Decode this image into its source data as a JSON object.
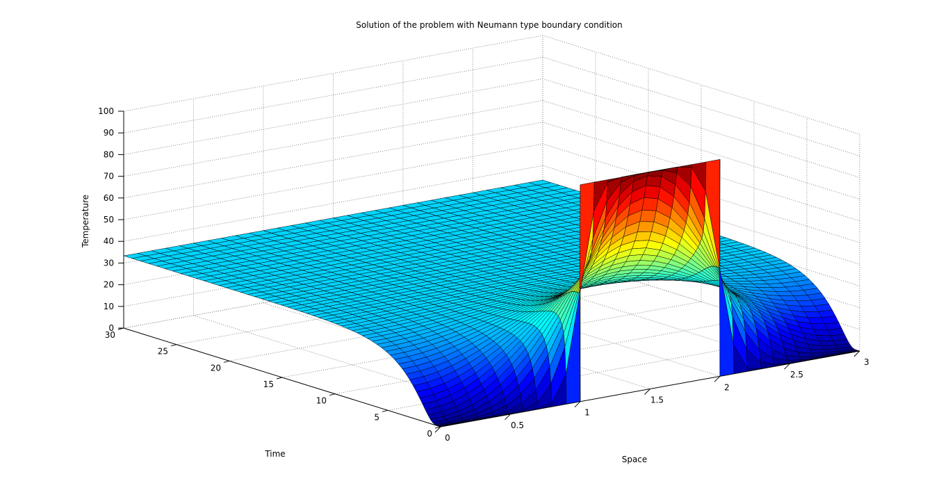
{
  "chart_data": {
    "type": "surface",
    "title": "Solution of the problem with Neumann type boundary condition",
    "xlabel": "Space",
    "ylabel": "Time",
    "zlabel": "Temperature",
    "xlim": [
      0,
      3
    ],
    "ylim": [
      0,
      30
    ],
    "zlim": [
      0,
      100
    ],
    "xticks": [
      "0",
      "0.5",
      "1",
      "1.5",
      "2",
      "2.5",
      "3"
    ],
    "yticks": [
      "0",
      "5",
      "10",
      "15",
      "20",
      "25",
      "30"
    ],
    "zticks": [
      "0",
      "10",
      "20",
      "30",
      "40",
      "50",
      "60",
      "70",
      "80",
      "90",
      "100"
    ],
    "grid": true,
    "colormap": "jet",
    "initial_condition": {
      "hot_region": [
        1,
        2
      ],
      "hot_value": 100,
      "outside_value": 0
    },
    "colormap_stops": [
      "#00008f",
      "#0000ff",
      "#00ffff",
      "#ffff00",
      "#ff0000",
      "#800000"
    ]
  }
}
